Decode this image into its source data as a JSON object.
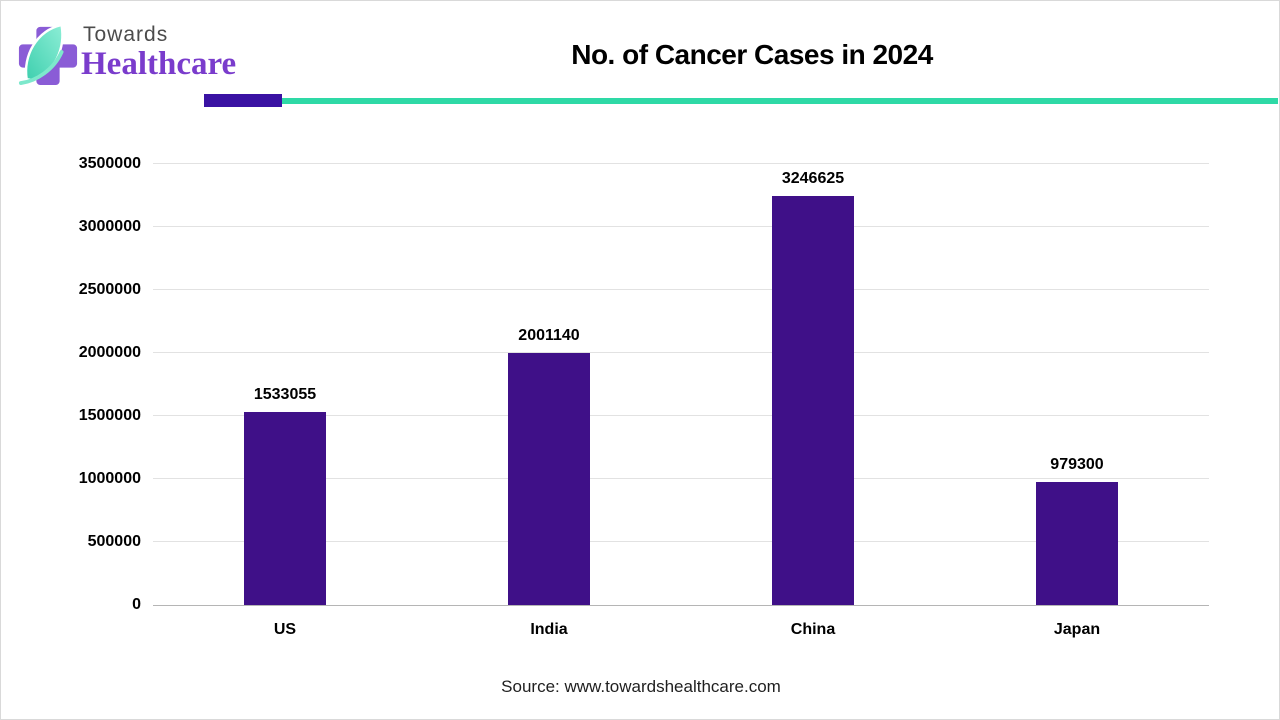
{
  "header": {
    "logo_line1": "Towards",
    "logo_line2": "Healthcare",
    "title": "No. of Cancer Cases in 2024"
  },
  "divider": {
    "accent_color": "#3a12a3",
    "line_color": "#2ed9a6"
  },
  "chart_data": {
    "type": "bar",
    "title": "No. of Cancer Cases in 2024",
    "categories": [
      "US",
      "India",
      "China",
      "Japan"
    ],
    "values": [
      1533055,
      2001140,
      3246625,
      979300
    ],
    "value_labels": [
      "1533055",
      "2001140",
      "3246625",
      "979300"
    ],
    "xlabel": "",
    "ylabel": "",
    "ylim": [
      0,
      3500000
    ],
    "ytick_step": 500000,
    "ytick_labels": [
      "0",
      "500000",
      "1000000",
      "1500000",
      "2000000",
      "2500000",
      "3000000",
      "3500000"
    ],
    "grid": true,
    "legend_position": "none",
    "bar_color": "#3f1088"
  },
  "footer": {
    "source": "Source: www.towardshealthcare.com"
  }
}
